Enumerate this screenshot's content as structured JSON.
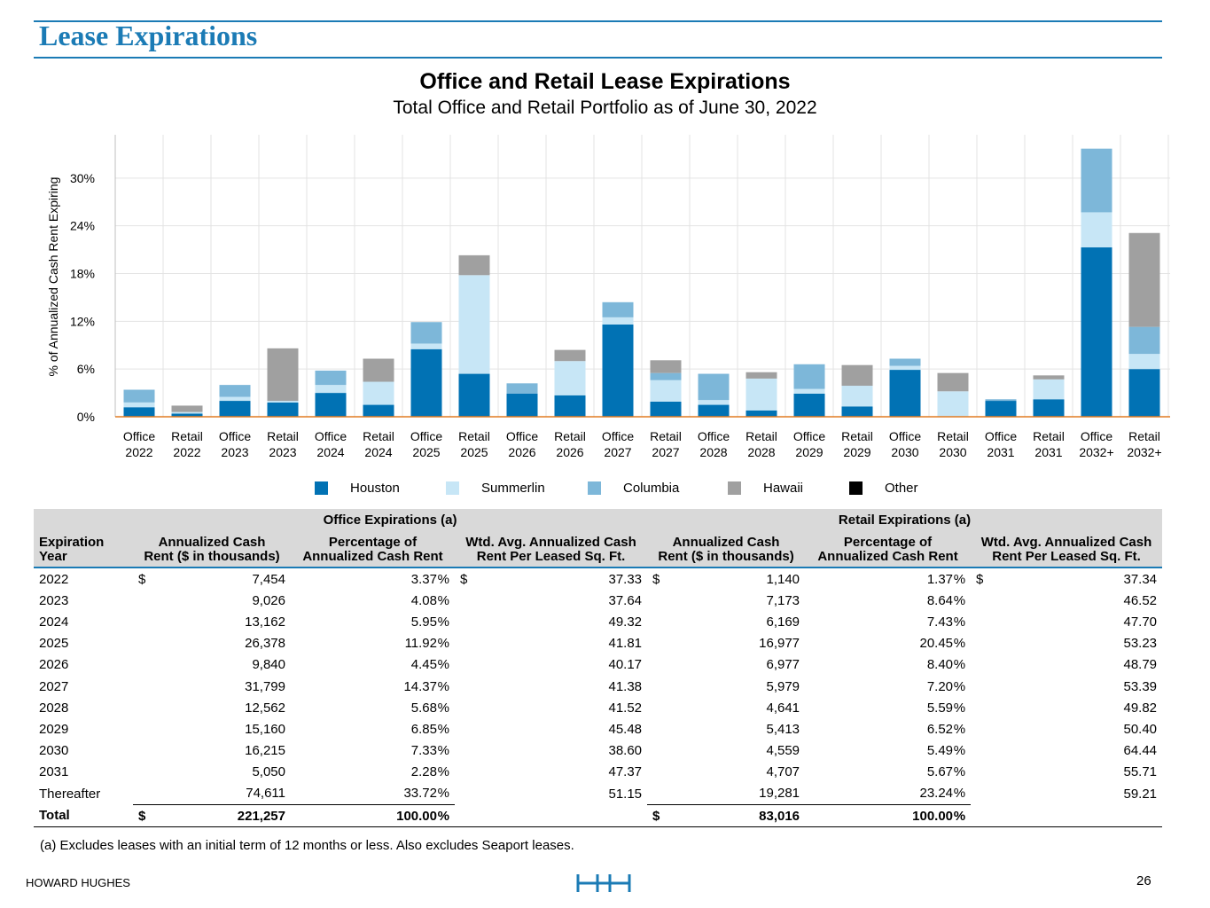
{
  "page": {
    "title": "Lease Expirations",
    "footnote": "(a)  Excludes leases with an initial term of 12 months or less. Also excludes Seaport leases.",
    "brand": "HOWARD HUGHES",
    "page_number": "26"
  },
  "chart_data": {
    "type": "bar",
    "stacked": true,
    "title": "Office and Retail Lease Expirations",
    "subtitle": "Total Office and Retail Portfolio as of June 30, 2022",
    "xlabel": "",
    "ylabel": "% of Annualized Cash Rent Expiring",
    "ylim": [
      0,
      35
    ],
    "yticks": [
      "0%",
      "6%",
      "12%",
      "18%",
      "24%",
      "30%"
    ],
    "ytick_values": [
      0,
      6,
      12,
      18,
      24,
      30
    ],
    "categories": [
      [
        "Office",
        "2022"
      ],
      [
        "Retail",
        "2022"
      ],
      [
        "Office",
        "2023"
      ],
      [
        "Retail",
        "2023"
      ],
      [
        "Office",
        "2024"
      ],
      [
        "Retail",
        "2024"
      ],
      [
        "Office",
        "2025"
      ],
      [
        "Retail",
        "2025"
      ],
      [
        "Office",
        "2026"
      ],
      [
        "Retail",
        "2026"
      ],
      [
        "Office",
        "2027"
      ],
      [
        "Retail",
        "2027"
      ],
      [
        "Office",
        "2028"
      ],
      [
        "Retail",
        "2028"
      ],
      [
        "Office",
        "2029"
      ],
      [
        "Retail",
        "2029"
      ],
      [
        "Office",
        "2030"
      ],
      [
        "Retail",
        "2030"
      ],
      [
        "Office",
        "2031"
      ],
      [
        "Retail",
        "2031"
      ],
      [
        "Office",
        "2032+"
      ],
      [
        "Retail",
        "2032+"
      ]
    ],
    "series": [
      {
        "name": "Houston",
        "color": "#0172b4",
        "values": [
          1.2,
          0.4,
          2.0,
          1.8,
          3.0,
          1.5,
          8.5,
          5.4,
          2.9,
          2.7,
          11.6,
          1.9,
          1.5,
          0.8,
          2.9,
          1.3,
          5.9,
          0.0,
          2.0,
          2.2,
          21.3,
          6.0
        ]
      },
      {
        "name": "Summerlin",
        "color": "#c7e6f6",
        "values": [
          0.6,
          0.2,
          0.5,
          0.2,
          1.0,
          2.9,
          0.7,
          12.4,
          0.0,
          4.3,
          0.9,
          2.7,
          0.6,
          4.0,
          0.6,
          2.6,
          0.5,
          3.2,
          0.0,
          2.5,
          4.4,
          1.9
        ]
      },
      {
        "name": "Columbia",
        "color": "#7db7d9",
        "values": [
          1.6,
          0.0,
          1.5,
          0.0,
          1.8,
          0.0,
          2.7,
          0.0,
          1.3,
          0.0,
          1.9,
          0.9,
          3.3,
          0.0,
          3.1,
          0.0,
          0.9,
          0.0,
          0.2,
          0.0,
          8.0,
          3.4
        ]
      },
      {
        "name": "Hawaii",
        "color": "#a0a0a0",
        "values": [
          0.0,
          0.8,
          0.0,
          6.6,
          0.0,
          2.9,
          0.0,
          2.5,
          0.0,
          1.4,
          0.0,
          1.6,
          0.0,
          0.8,
          0.0,
          2.6,
          0.0,
          2.3,
          0.0,
          0.5,
          0.0,
          11.8
        ]
      },
      {
        "name": "Other",
        "color": "#000000",
        "values": [
          0,
          0,
          0,
          0,
          0,
          0,
          0,
          0,
          0,
          0,
          0,
          0,
          0,
          0,
          0,
          0,
          0,
          0,
          0,
          0,
          0,
          0
        ]
      }
    ],
    "legend_position": "bottom",
    "grid": true
  },
  "table": {
    "group_headers": {
      "office": "Office Expirations (a)",
      "retail": "Retail Expirations (a)"
    },
    "col_headers": {
      "year": [
        "Expiration",
        "Year"
      ],
      "office_rent": [
        "Annualized Cash",
        "Rent ($ in thousands)"
      ],
      "office_pct": [
        "Percentage of",
        "Annualized Cash Rent"
      ],
      "office_wtd": [
        "Wtd. Avg. Annualized Cash",
        "Rent Per Leased Sq. Ft."
      ],
      "retail_rent": [
        "Annualized Cash",
        "Rent ($ in thousands)"
      ],
      "retail_pct": [
        "Percentage of",
        "Annualized Cash Rent"
      ],
      "retail_wtd": [
        "Wtd. Avg. Annualized Cash",
        "Rent Per Leased Sq. Ft."
      ]
    },
    "currency": "$",
    "percent": "%",
    "rows": [
      {
        "year": "2022",
        "office_rent": "7,454",
        "office_pct": "3.37",
        "office_wtd": "37.33",
        "retail_rent": "1,140",
        "retail_pct": "1.37",
        "retail_wtd": "37.34"
      },
      {
        "year": "2023",
        "office_rent": "9,026",
        "office_pct": "4.08",
        "office_wtd": "37.64",
        "retail_rent": "7,173",
        "retail_pct": "8.64",
        "retail_wtd": "46.52"
      },
      {
        "year": "2024",
        "office_rent": "13,162",
        "office_pct": "5.95",
        "office_wtd": "49.32",
        "retail_rent": "6,169",
        "retail_pct": "7.43",
        "retail_wtd": "47.70"
      },
      {
        "year": "2025",
        "office_rent": "26,378",
        "office_pct": "11.92",
        "office_wtd": "41.81",
        "retail_rent": "16,977",
        "retail_pct": "20.45",
        "retail_wtd": "53.23"
      },
      {
        "year": "2026",
        "office_rent": "9,840",
        "office_pct": "4.45",
        "office_wtd": "40.17",
        "retail_rent": "6,977",
        "retail_pct": "8.40",
        "retail_wtd": "48.79"
      },
      {
        "year": "2027",
        "office_rent": "31,799",
        "office_pct": "14.37",
        "office_wtd": "41.38",
        "retail_rent": "5,979",
        "retail_pct": "7.20",
        "retail_wtd": "53.39"
      },
      {
        "year": "2028",
        "office_rent": "12,562",
        "office_pct": "5.68",
        "office_wtd": "41.52",
        "retail_rent": "4,641",
        "retail_pct": "5.59",
        "retail_wtd": "49.82"
      },
      {
        "year": "2029",
        "office_rent": "15,160",
        "office_pct": "6.85",
        "office_wtd": "45.48",
        "retail_rent": "5,413",
        "retail_pct": "6.52",
        "retail_wtd": "50.40"
      },
      {
        "year": "2030",
        "office_rent": "16,215",
        "office_pct": "7.33",
        "office_wtd": "38.60",
        "retail_rent": "4,559",
        "retail_pct": "5.49",
        "retail_wtd": "64.44"
      },
      {
        "year": "2031",
        "office_rent": "5,050",
        "office_pct": "2.28",
        "office_wtd": "47.37",
        "retail_rent": "4,707",
        "retail_pct": "5.67",
        "retail_wtd": "55.71"
      },
      {
        "year": "Thereafter",
        "office_rent": "74,611",
        "office_pct": "33.72",
        "office_wtd": "51.15",
        "retail_rent": "19,281",
        "retail_pct": "23.24",
        "retail_wtd": "59.21"
      }
    ],
    "total": {
      "label": "Total",
      "office_rent": "221,257",
      "office_pct": "100.00",
      "retail_rent": "83,016",
      "retail_pct": "100.00"
    }
  }
}
